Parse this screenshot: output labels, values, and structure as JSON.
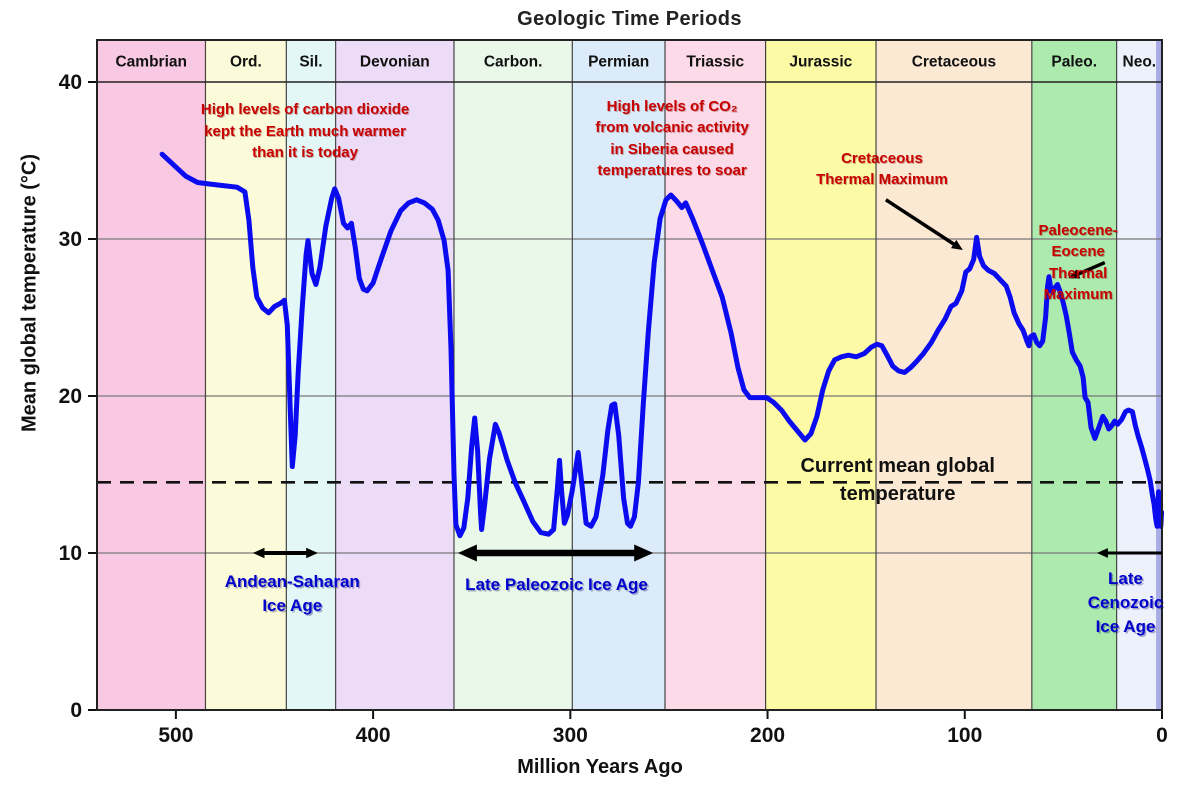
{
  "title": "Geologic Time Periods",
  "y_axis": {
    "label": "Mean global temperature (°C)",
    "ticks": [
      0,
      10,
      20,
      30,
      40
    ]
  },
  "x_axis": {
    "label": "Million Years Ago",
    "ticks": [
      500,
      400,
      300,
      200,
      100,
      0
    ]
  },
  "colors": {
    "curve": "#0b0bf0",
    "dashed_line": "#111111",
    "grid": "#787878",
    "band_border": "#444444",
    "frame": "#222222",
    "arrow": "#000000"
  },
  "periods": [
    {
      "name": "Cambrian",
      "start": 540,
      "end": 485,
      "color": "#f9c9e3"
    },
    {
      "name": "Ord.",
      "start": 485,
      "end": 444,
      "color": "#fcfbd9"
    },
    {
      "name": "Sil.",
      "start": 444,
      "end": 419,
      "color": "#e3f8f6"
    },
    {
      "name": "Devonian",
      "start": 419,
      "end": 359,
      "color": "#ecdcf7"
    },
    {
      "name": "Carbon.",
      "start": 359,
      "end": 299,
      "color": "#e9f8e8"
    },
    {
      "name": "Permian",
      "start": 299,
      "end": 252,
      "color": "#dcebf9"
    },
    {
      "name": "Triassic",
      "start": 252,
      "end": 201,
      "color": "#fcdae7"
    },
    {
      "name": "Jurassic",
      "start": 201,
      "end": 145,
      "color": "#fdfaa6"
    },
    {
      "name": "Cretaceous",
      "start": 145,
      "end": 66,
      "color": "#fce9d3"
    },
    {
      "name": "Paleo.",
      "start": 66,
      "end": 23,
      "color": "#aceaae"
    },
    {
      "name": "Neo.",
      "start": 23,
      "end": 0,
      "color": "#edf1fc"
    }
  ],
  "quaternary_strip": {
    "start": 3,
    "end": 0,
    "color": "#a9abe4"
  },
  "current_temp_line": {
    "value": 14.5
  },
  "annotations": {
    "cambrian_co2": {
      "text": "High levels of carbon dioxide\nkept the Earth much warmer\nthan it is today",
      "color": "#c80000",
      "font_size": 15,
      "anchor_ma": 434.5,
      "anchor_temp": 38.9,
      "style": "red"
    },
    "permian_co2": {
      "text": "High levels of CO₂\nfrom volcanic activity\nin Siberia caused\ntemperatures to soar",
      "color": "#c80000",
      "font_size": 15,
      "anchor_ma": 248.4,
      "anchor_temp": 39.1,
      "style": "red"
    },
    "cretaceous_max": {
      "text": "Cretaceous\nThermal Maximum",
      "color": "#c80000",
      "font_size": 15,
      "anchor_ma": 142,
      "anchor_temp": 35.8,
      "style": "red"
    },
    "petm": {
      "text": "Paleocene-Eocene\nThermal Maximum",
      "color": "#c80000",
      "font_size": 15,
      "anchor_ma": 42.5,
      "anchor_temp": 31.2,
      "style": "red"
    },
    "andean_ice": {
      "text": "Andean-Saharan\nIce Age",
      "color": "#0000cc",
      "font_size": 17,
      "anchor_ma": 441,
      "anchor_temp": 8.9,
      "style": "blue"
    },
    "paleozoic_ice": {
      "text": "Late Paleozoic Ice Age",
      "color": "#0000cc",
      "font_size": 17,
      "anchor_ma": 307,
      "anchor_temp": 8.7,
      "style": "blue"
    },
    "cenozoic_ice": {
      "text": "Late Cenozoic\nIce Age",
      "color": "#0000cc",
      "font_size": 17,
      "anchor_ma": 18.5,
      "anchor_temp": 9.1,
      "style": "blue"
    },
    "current_temp": {
      "text": "Current mean global temperature",
      "color": "#111111",
      "font_size": 20,
      "anchor_ma": 134,
      "anchor_temp": 16.45,
      "style": "black"
    }
  },
  "ice_age_arrows": [
    {
      "name": "andean-saharan-arrow",
      "from_ma": 461,
      "to_ma": 428,
      "temp": 10,
      "weight": 4,
      "double": true
    },
    {
      "name": "late-paleozoic-arrow",
      "from_ma": 357,
      "to_ma": 258,
      "temp": 10,
      "weight": 6.5,
      "double": true
    },
    {
      "name": "late-cenozoic-arrow",
      "from_ma": 0,
      "to_ma": 33,
      "temp": 10,
      "weight": 3,
      "double": false
    }
  ],
  "pointer_arrows": [
    {
      "name": "cretaceous-max-arrow",
      "from_ma": 140,
      "from_temp": 32.5,
      "to_ma": 101,
      "to_temp": 29.3,
      "weight": 3.5
    },
    {
      "name": "petm-arrow",
      "from_ma": 29,
      "from_temp": 28.5,
      "to_ma": 47.5,
      "to_temp": 27.5,
      "weight": 3.5
    }
  ],
  "chart_data": {
    "type": "line",
    "title": "Geologic Time Periods",
    "xlabel": "Million Years Ago",
    "ylabel": "Mean global temperature (°C)",
    "xlim": [
      540,
      0
    ],
    "ylim": [
      0,
      42.7
    ],
    "grid": true,
    "series_name": "Mean global temperature",
    "reference_line": {
      "label": "Current mean global temperature",
      "value": 14.5
    },
    "points": [
      [
        507,
        35.4
      ],
      [
        501,
        34.7
      ],
      [
        495,
        34.0
      ],
      [
        489,
        33.6
      ],
      [
        483,
        33.5
      ],
      [
        476,
        33.4
      ],
      [
        469,
        33.3
      ],
      [
        465,
        33.0
      ],
      [
        463,
        31.2
      ],
      [
        461,
        28.2
      ],
      [
        459,
        26.3
      ],
      [
        456,
        25.6
      ],
      [
        453,
        25.3
      ],
      [
        450,
        25.7
      ],
      [
        447,
        25.9
      ],
      [
        445,
        26.1
      ],
      [
        443.5,
        24.5
      ],
      [
        442,
        19.0
      ],
      [
        441,
        15.5
      ],
      [
        439.5,
        17.5
      ],
      [
        438,
        21.5
      ],
      [
        436,
        25.5
      ],
      [
        434,
        29.0
      ],
      [
        433,
        29.9
      ],
      [
        431,
        27.8
      ],
      [
        429,
        27.1
      ],
      [
        427,
        28.2
      ],
      [
        424,
        30.8
      ],
      [
        421,
        32.6
      ],
      [
        419.5,
        33.2
      ],
      [
        417.5,
        32.6
      ],
      [
        415,
        31.0
      ],
      [
        413,
        30.7
      ],
      [
        411,
        31.0
      ],
      [
        409,
        29.4
      ],
      [
        407,
        27.5
      ],
      [
        405,
        26.8
      ],
      [
        403,
        26.7
      ],
      [
        400,
        27.2
      ],
      [
        396,
        28.7
      ],
      [
        391,
        30.5
      ],
      [
        386,
        31.8
      ],
      [
        382,
        32.3
      ],
      [
        378,
        32.5
      ],
      [
        374,
        32.3
      ],
      [
        370,
        31.9
      ],
      [
        367,
        31.2
      ],
      [
        364,
        29.9
      ],
      [
        362,
        28.0
      ],
      [
        360.5,
        23.0
      ],
      [
        359,
        15.0
      ],
      [
        358,
        11.8
      ],
      [
        356,
        11.1
      ],
      [
        354,
        11.6
      ],
      [
        352,
        13.5
      ],
      [
        350,
        16.8
      ],
      [
        348.5,
        18.6
      ],
      [
        347,
        16.5
      ],
      [
        345.5,
        12.5
      ],
      [
        345,
        11.5
      ],
      [
        343.5,
        13.0
      ],
      [
        341,
        16.0
      ],
      [
        338,
        18.2
      ],
      [
        336,
        17.6
      ],
      [
        332,
        15.9
      ],
      [
        328,
        14.5
      ],
      [
        324,
        13.4
      ],
      [
        319,
        12.0
      ],
      [
        315,
        11.3
      ],
      [
        311,
        11.2
      ],
      [
        308.5,
        11.5
      ],
      [
        306.5,
        14.2
      ],
      [
        305.5,
        15.9
      ],
      [
        304.5,
        14.0
      ],
      [
        303,
        11.9
      ],
      [
        301.5,
        12.4
      ],
      [
        299,
        14.0
      ],
      [
        296,
        16.4
      ],
      [
        294,
        14.2
      ],
      [
        292,
        11.9
      ],
      [
        289.5,
        11.7
      ],
      [
        287,
        12.3
      ],
      [
        283.5,
        15.0
      ],
      [
        281,
        17.8
      ],
      [
        279,
        19.4
      ],
      [
        277.5,
        19.5
      ],
      [
        275.5,
        17.5
      ],
      [
        273,
        13.5
      ],
      [
        271,
        11.9
      ],
      [
        269.5,
        11.7
      ],
      [
        267.5,
        12.3
      ],
      [
        265.5,
        14.5
      ],
      [
        263,
        19.5
      ],
      [
        260.5,
        24.0
      ],
      [
        257.5,
        28.5
      ],
      [
        254.5,
        31.3
      ],
      [
        251.5,
        32.5
      ],
      [
        249,
        32.8
      ],
      [
        246,
        32.4
      ],
      [
        243.5,
        32.0
      ],
      [
        241.5,
        32.3
      ],
      [
        238,
        31.3
      ],
      [
        233,
        29.7
      ],
      [
        228,
        28.0
      ],
      [
        223,
        26.3
      ],
      [
        218.5,
        24.0
      ],
      [
        215,
        21.8
      ],
      [
        212,
        20.4
      ],
      [
        209,
        19.9
      ],
      [
        205,
        19.9
      ],
      [
        200.5,
        19.9
      ],
      [
        197,
        19.6
      ],
      [
        193,
        19.1
      ],
      [
        189,
        18.4
      ],
      [
        185,
        17.8
      ],
      [
        181,
        17.2
      ],
      [
        178,
        17.6
      ],
      [
        175,
        18.7
      ],
      [
        172,
        20.4
      ],
      [
        169,
        21.6
      ],
      [
        166,
        22.3
      ],
      [
        162.5,
        22.5
      ],
      [
        159,
        22.6
      ],
      [
        155,
        22.5
      ],
      [
        151,
        22.7
      ],
      [
        147.5,
        23.1
      ],
      [
        144.5,
        23.3
      ],
      [
        142,
        23.2
      ],
      [
        139,
        22.5
      ],
      [
        136.5,
        21.9
      ],
      [
        133.5,
        21.6
      ],
      [
        130.5,
        21.5
      ],
      [
        127.5,
        21.8
      ],
      [
        124.5,
        22.2
      ],
      [
        121,
        22.7
      ],
      [
        117,
        23.4
      ],
      [
        113.5,
        24.2
      ],
      [
        110,
        24.9
      ],
      [
        107,
        25.7
      ],
      [
        104.5,
        25.9
      ],
      [
        101.5,
        26.7
      ],
      [
        99.5,
        27.9
      ],
      [
        97.5,
        28.1
      ],
      [
        95.5,
        28.7
      ],
      [
        94,
        30.1
      ],
      [
        92.5,
        28.9
      ],
      [
        90.5,
        28.3
      ],
      [
        88,
        28.0
      ],
      [
        85,
        27.8
      ],
      [
        82,
        27.4
      ],
      [
        79,
        27.0
      ],
      [
        77,
        26.3
      ],
      [
        75,
        25.3
      ],
      [
        72.5,
        24.6
      ],
      [
        70.5,
        24.2
      ],
      [
        68.5,
        23.5
      ],
      [
        67.5,
        23.2
      ],
      [
        66.5,
        23.8
      ],
      [
        65,
        23.9
      ],
      [
        63.5,
        23.4
      ],
      [
        62,
        23.2
      ],
      [
        60.5,
        23.5
      ],
      [
        59,
        25.0
      ],
      [
        58,
        27.0
      ],
      [
        57.3,
        27.6
      ],
      [
        56.5,
        26.9
      ],
      [
        55.5,
        26.6
      ],
      [
        54.3,
        26.9
      ],
      [
        53,
        27.1
      ],
      [
        51.5,
        26.6
      ],
      [
        50,
        25.9
      ],
      [
        48.5,
        25.1
      ],
      [
        47,
        24.0
      ],
      [
        45.5,
        22.8
      ],
      [
        43.5,
        22.3
      ],
      [
        41.5,
        21.9
      ],
      [
        40,
        21.2
      ],
      [
        39,
        19.9
      ],
      [
        37.5,
        19.6
      ],
      [
        36,
        18.0
      ],
      [
        34,
        17.3
      ],
      [
        32,
        18.0
      ],
      [
        30,
        18.7
      ],
      [
        28.5,
        18.4
      ],
      [
        27,
        17.9
      ],
      [
        25.5,
        18.1
      ],
      [
        24,
        18.4
      ],
      [
        22.5,
        18.2
      ],
      [
        20.5,
        18.5
      ],
      [
        18.5,
        19.0
      ],
      [
        17,
        19.1
      ],
      [
        15,
        19.0
      ],
      [
        13.5,
        18.1
      ],
      [
        12,
        17.4
      ],
      [
        10.5,
        16.8
      ],
      [
        9,
        16.1
      ],
      [
        7.5,
        15.4
      ],
      [
        6,
        14.6
      ],
      [
        5,
        13.8
      ],
      [
        4,
        13.1
      ],
      [
        3.2,
        12.2
      ],
      [
        2.5,
        11.7
      ],
      [
        1.8,
        13.9
      ],
      [
        1.2,
        12.2
      ],
      [
        0.6,
        11.7
      ],
      [
        0.2,
        12.6
      ]
    ]
  }
}
